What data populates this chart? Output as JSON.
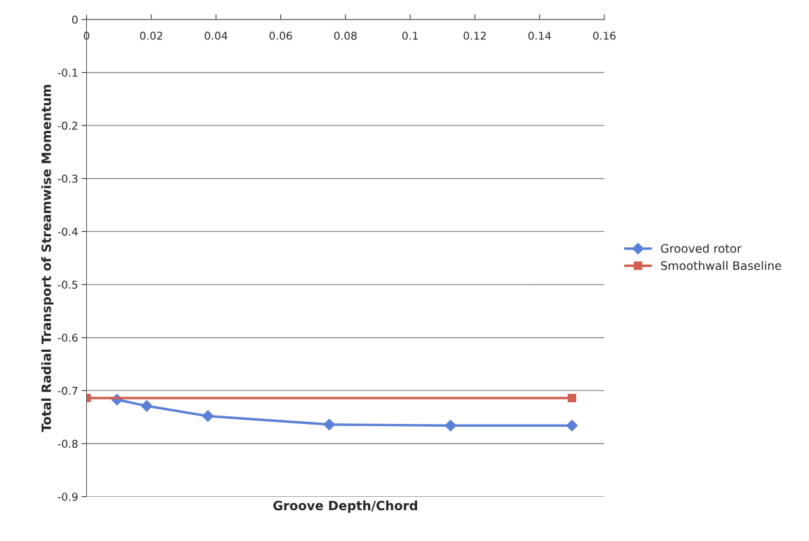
{
  "chart_data": {
    "type": "line",
    "xlabel": "Groove Depth/Chord",
    "ylabel": "Total Radial Transport of Streamwise Momentum",
    "series": [
      {
        "name": "Grooved rotor",
        "color": "#5b7fd6",
        "marker": "diamond",
        "x": [
          0.0094,
          0.0186,
          0.0375,
          0.075,
          0.1125,
          0.15
        ],
        "values": [
          -0.717,
          -0.729,
          -0.748,
          -0.764,
          -0.766,
          -0.766
        ]
      },
      {
        "name": "Smoothwall Baseline",
        "color": "#d0604f",
        "marker": "square",
        "x": [
          0,
          0.15
        ],
        "values": [
          -0.714,
          -0.714
        ]
      }
    ],
    "xlim": [
      0,
      0.16
    ],
    "xticks": [
      0,
      0.02,
      0.04,
      0.06,
      0.08,
      0.1,
      0.12,
      0.14,
      0.16
    ],
    "ylim": [
      -0.9,
      0
    ],
    "yticks": [
      -0.9,
      -0.8,
      -0.7,
      -0.6,
      -0.5,
      -0.4,
      -0.3,
      -0.2,
      -0.1,
      0
    ],
    "grid": "y",
    "legend": "right",
    "line_style": "solid"
  }
}
